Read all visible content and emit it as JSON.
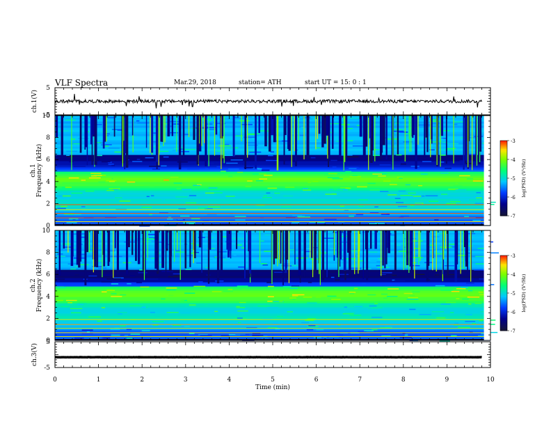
{
  "header": {
    "title": "VLF  Spectra",
    "date": "Mar.29, 2018",
    "station": "station= ATH",
    "start_ut": "start  UT  =    15: 0   : 1"
  },
  "chart_data": {
    "type": "spectrogram",
    "xlabel": "Time  (min)",
    "xlim": [
      0,
      10
    ],
    "x_ticks": [
      "0",
      "1",
      "2",
      "3",
      "4",
      "5",
      "6",
      "7",
      "8",
      "9",
      "10"
    ],
    "panels": [
      {
        "kind": "waveform",
        "ylabel": "ch.1(V)",
        "ylim": [
          -5,
          5
        ],
        "y_ticks": [
          "5",
          "-5"
        ],
        "baseline": 0,
        "noise_amplitude": 0.6
      },
      {
        "kind": "spectrogram",
        "ylabel_top": "ch.1",
        "ylabel": "Frequency  (kHz)",
        "ylim": [
          0,
          10
        ],
        "y_ticks": [
          "0",
          "2",
          "4",
          "6",
          "8",
          "10"
        ],
        "colorbar": {
          "label": "log(PSD) (V²/Hz)",
          "ticks": [
            "-3",
            "-4",
            "-5",
            "-6",
            "-7"
          ],
          "range": [
            -7,
            -3
          ]
        }
      },
      {
        "kind": "spectrogram",
        "ylabel_top": "ch.2",
        "ylabel": "Frequency  (kHz)",
        "ylim": [
          0,
          10
        ],
        "y_ticks": [
          "0",
          "2",
          "4",
          "6",
          "8",
          "10"
        ],
        "colorbar": {
          "label": "log(PSD) (V²/Hz)",
          "ticks": [
            "-3",
            "-4",
            "-5",
            "-6",
            "-7"
          ],
          "range": [
            -7,
            -3
          ]
        }
      },
      {
        "kind": "waveform",
        "ylabel": "ch.3(V)",
        "ylim": [
          -5,
          5
        ],
        "y_ticks": [
          "5",
          "-5"
        ],
        "baseline": -1,
        "noise_amplitude": 0.05
      }
    ],
    "colors": {
      "low": "#000080",
      "mid_low": "#0050ff",
      "mid": "#00ffff",
      "mid_high": "#00ff40",
      "high": "#ffff00",
      "peak": "#ff0000"
    }
  }
}
